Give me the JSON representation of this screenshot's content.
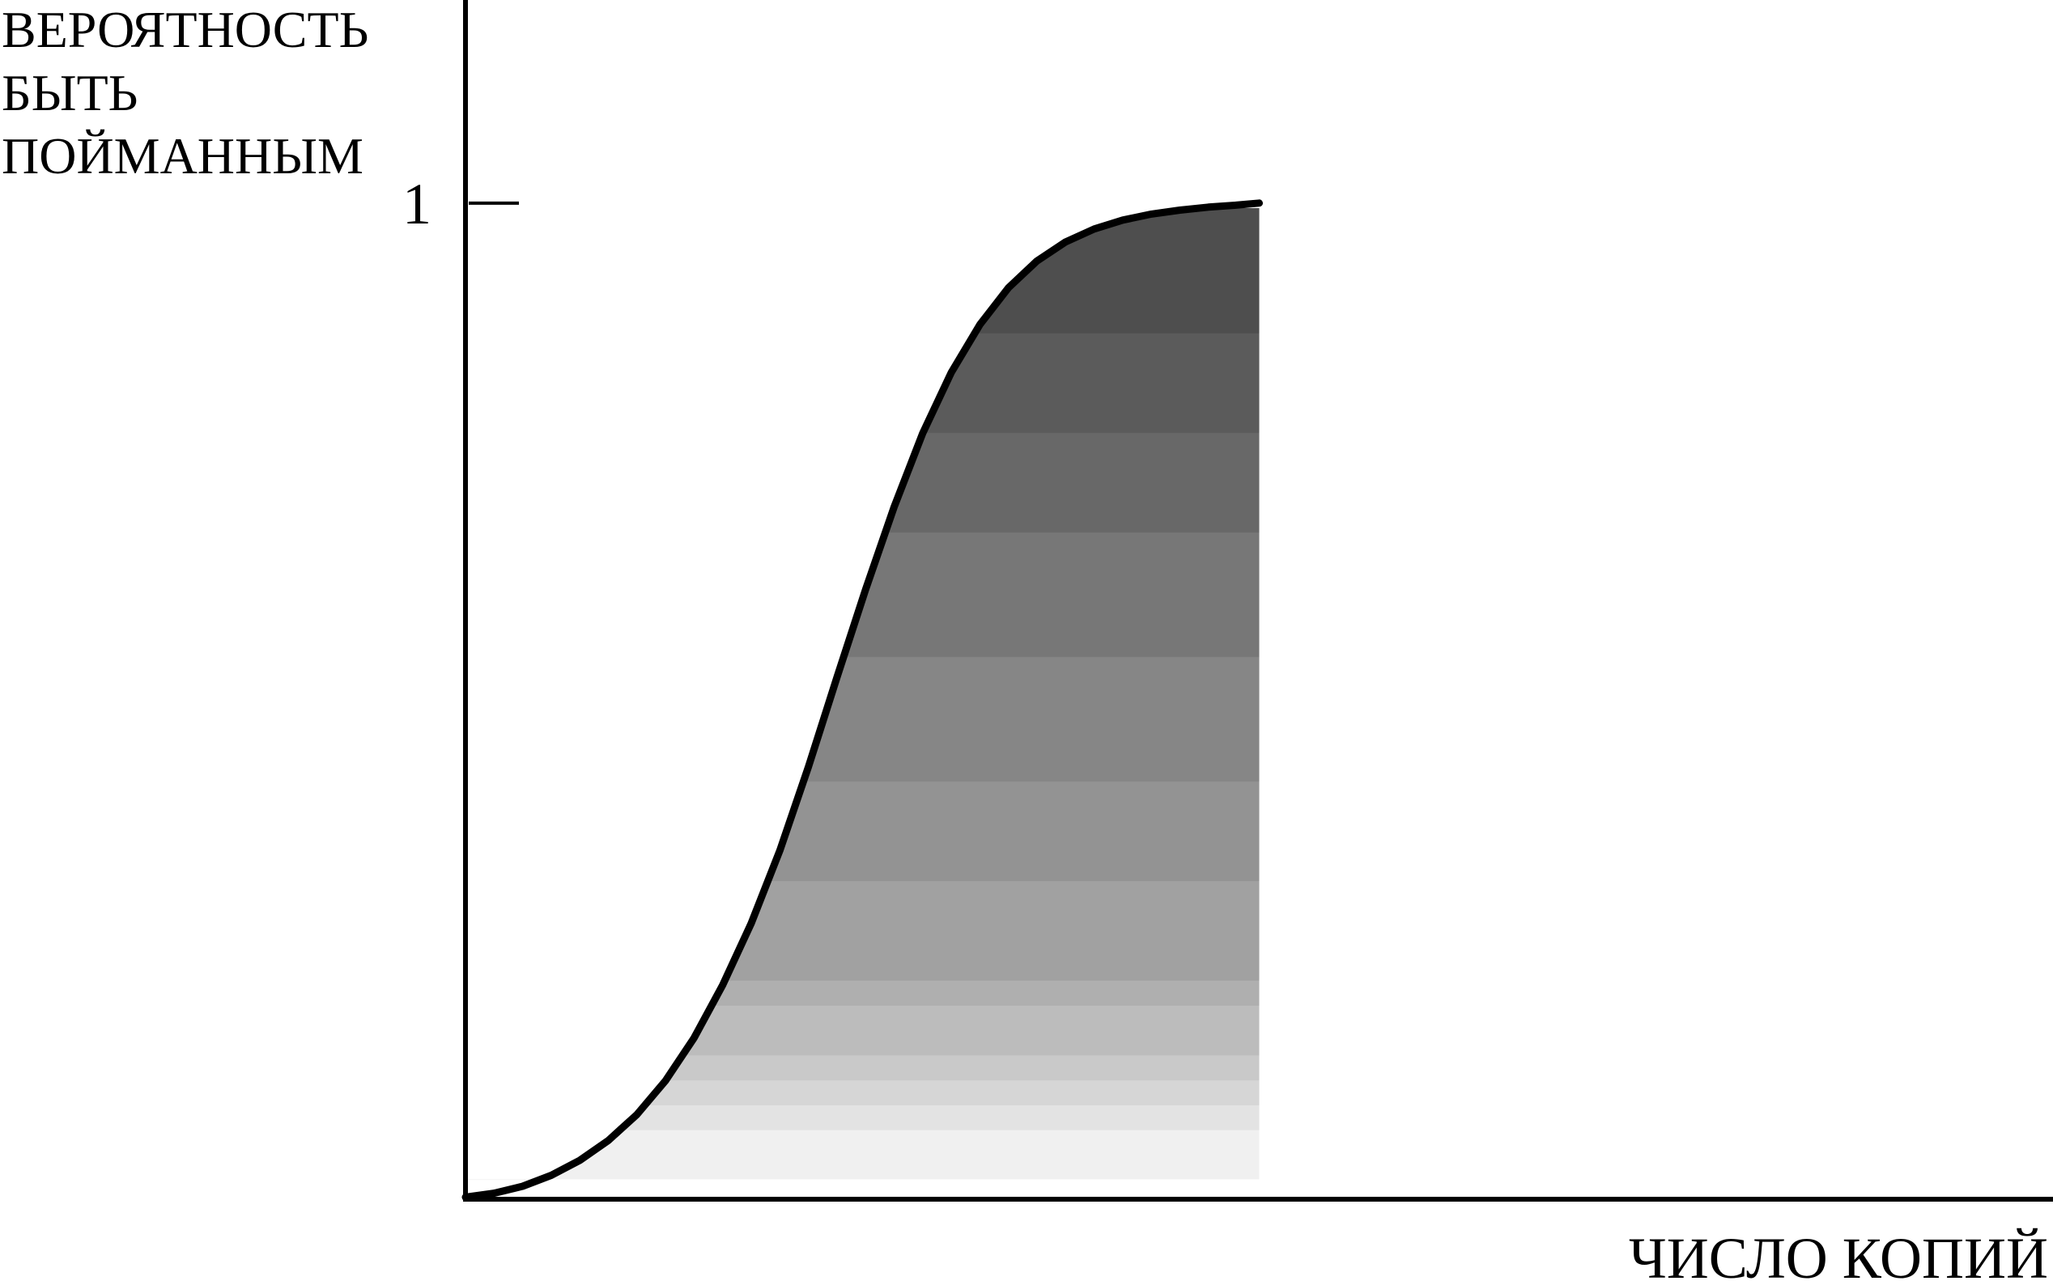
{
  "chart_data": {
    "type": "area",
    "ylabel_lines": [
      "ВЕРОЯТНОСТЬ",
      "БЫТЬ",
      "ПОЙМАННЫМ"
    ],
    "xlabel": "ЧИСЛО КОПИЙ",
    "y_tick_label": "1",
    "y_tick_value": 1,
    "ylim": [
      0,
      1.26
    ],
    "xlim": [
      0,
      1
    ],
    "grid": false,
    "legend": "none",
    "curve_end_x": 0.5,
    "series": [
      {
        "x": [
          0,
          0.018,
          0.036,
          0.054,
          0.072,
          0.09,
          0.108,
          0.126,
          0.144,
          0.162,
          0.18,
          0.198,
          0.216,
          0.234,
          0.252,
          0.27,
          0.288,
          0.306,
          0.324,
          0.342,
          0.36,
          0.378,
          0.396,
          0.414,
          0.432,
          0.45,
          0.468,
          0.486,
          0.5
        ],
        "y": [
          0.002,
          0.006,
          0.013,
          0.024,
          0.039,
          0.059,
          0.085,
          0.119,
          0.162,
          0.215,
          0.277,
          0.35,
          0.434,
          0.524,
          0.612,
          0.695,
          0.769,
          0.83,
          0.878,
          0.915,
          0.942,
          0.961,
          0.974,
          0.983,
          0.989,
          0.993,
          0.996,
          0.998,
          1.0
        ]
      }
    ],
    "shading_bands": [
      {
        "y_from": 0.02,
        "y_to": 0.07,
        "color": "#f0f0f0"
      },
      {
        "y_from": 0.07,
        "y_to": 0.095,
        "color": "#e3e3e3"
      },
      {
        "y_from": 0.095,
        "y_to": 0.12,
        "color": "#d6d6d6"
      },
      {
        "y_from": 0.12,
        "y_to": 0.145,
        "color": "#c9c9c9"
      },
      {
        "y_from": 0.145,
        "y_to": 0.195,
        "color": "#bcbcbc"
      },
      {
        "y_from": 0.195,
        "y_to": 0.22,
        "color": "#afafaf"
      },
      {
        "y_from": 0.22,
        "y_to": 0.32,
        "color": "#a1a1a1"
      },
      {
        "y_from": 0.32,
        "y_to": 0.42,
        "color": "#939393"
      },
      {
        "y_from": 0.42,
        "y_to": 0.545,
        "color": "#868686"
      },
      {
        "y_from": 0.545,
        "y_to": 0.67,
        "color": "#777777"
      },
      {
        "y_from": 0.67,
        "y_to": 0.77,
        "color": "#686868"
      },
      {
        "y_from": 0.77,
        "y_to": 0.87,
        "color": "#5b5b5b"
      },
      {
        "y_from": 0.87,
        "y_to": 0.995,
        "color": "#4e4e4e"
      }
    ],
    "colors": {
      "line": "#000000",
      "axis": "#000000",
      "background": "#ffffff"
    }
  }
}
